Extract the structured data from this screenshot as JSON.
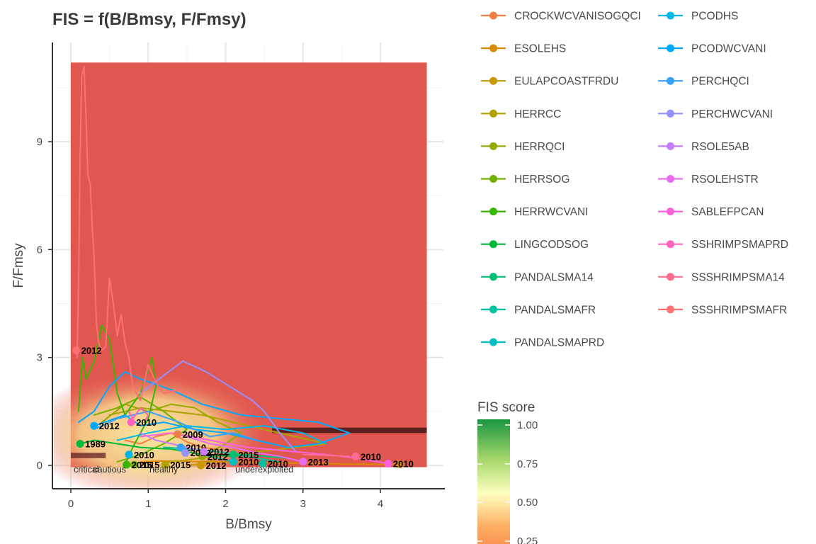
{
  "chart_data": {
    "type": "line",
    "title": "FIS = f(B/Bmsy, F/Fmsy)",
    "xlabel": "B/Bmsy",
    "ylabel": "F/Fmsy",
    "xlim": [
      -0.23,
      4.82
    ],
    "ylim": [
      -0.65,
      11.9
    ],
    "x_ticks": [
      0,
      1,
      2,
      3,
      4
    ],
    "y_ticks": [
      0,
      3,
      6,
      9
    ],
    "grid": true,
    "legend_position": "right",
    "zone_labels": [
      {
        "text": "critical",
        "x": 0.2
      },
      {
        "text": "cautious",
        "x": 0.5
      },
      {
        "text": "healthy",
        "x": 1.2
      },
      {
        "text": "underexploited",
        "x": 2.5
      }
    ],
    "colorbar": {
      "title": "FIS score",
      "ticks": [
        "1.00",
        "0.75",
        "0.50",
        "0.25"
      ]
    },
    "series": [
      {
        "name": "CROCKWCVANISOGQCI",
        "color": "#F07E45",
        "x": [
          1.9,
          1.7,
          1.5,
          1.3,
          1.1,
          0.9,
          0.7
        ],
        "y": [
          0.45,
          0.5,
          0.65,
          0.9,
          0.8,
          0.6,
          0.7
        ],
        "end": {
          "x": 1.38,
          "y": 0.87,
          "label": "2009"
        }
      },
      {
        "name": "ESOLEHS",
        "color": "#DA8A00",
        "x": [
          4.2,
          3.6,
          3.0,
          2.4,
          1.8,
          1.2,
          0.9
        ],
        "y": [
          0.03,
          0.04,
          0.06,
          0.08,
          0.1,
          0.12,
          0.1
        ],
        "end": {
          "x": 4.25,
          "y": 0.03,
          "label": ""
        }
      },
      {
        "name": "EULAPCOASTFRDU",
        "color": "#C69A00",
        "x": [
          1.9,
          1.8,
          1.7,
          1.6,
          1.5
        ],
        "y": [
          0.2,
          0.1,
          0.04,
          0.02,
          0.0
        ],
        "end": {
          "x": 1.68,
          "y": 0.0,
          "label": "2012"
        }
      },
      {
        "name": "HERRCC",
        "color": "#B0A200",
        "x": [
          0.5,
          0.9,
          1.3,
          1.7,
          2.1,
          2.5,
          2.9,
          3.3,
          2.9,
          2.5,
          2.1,
          1.7,
          1.3,
          1.2
        ],
        "y": [
          1.4,
          1.6,
          1.5,
          1.4,
          1.2,
          1.0,
          0.8,
          0.6,
          0.5,
          0.4,
          0.3,
          0.2,
          0.1,
          0.05
        ],
        "end": {
          "x": 1.22,
          "y": 0.02,
          "label": "2015"
        }
      },
      {
        "name": "HERRQCI",
        "color": "#97A900",
        "x": [
          0.4,
          0.7,
          1.0,
          1.3,
          1.6,
          1.9,
          2.2,
          2.0,
          1.7
        ],
        "y": [
          1.2,
          1.7,
          1.5,
          1.7,
          1.6,
          1.2,
          0.9,
          0.6,
          0.25
        ],
        "end": {
          "x": 1.7,
          "y": 0.25,
          "label": "2012"
        }
      },
      {
        "name": "HERRSOG",
        "color": "#72B000",
        "x": [
          0.3,
          0.6,
          0.9,
          1.2,
          1.5,
          1.2,
          0.9,
          0.6
        ],
        "y": [
          1.4,
          1.6,
          1.9,
          1.5,
          1.0,
          0.6,
          0.3,
          0.1
        ],
        "end": {
          "x": 0.82,
          "y": 0.02,
          "label": "2015"
        }
      },
      {
        "name": "HERRWCVANI",
        "color": "#39B600",
        "x": [
          0.1,
          0.15,
          0.2,
          0.3,
          0.4,
          0.5,
          0.6,
          0.7,
          0.9,
          1.05,
          1.1,
          1.0,
          0.8,
          0.7
        ],
        "y": [
          1.5,
          3.0,
          2.4,
          2.9,
          3.9,
          3.5,
          2.0,
          1.4,
          2.0,
          3.0,
          2.2,
          1.3,
          0.5,
          0.02
        ],
        "end": {
          "x": 0.72,
          "y": 0.02,
          "label": "2015"
        }
      },
      {
        "name": "LINGCODSOG",
        "color": "#00BA38",
        "x": [
          0.12,
          0.3,
          0.6,
          0.9,
          1.3,
          1.7,
          2.1,
          2.3
        ],
        "y": [
          0.6,
          0.7,
          0.6,
          0.5,
          0.45,
          0.3,
          0.25,
          0.3
        ],
        "end": {
          "x": 0.12,
          "y": 0.6,
          "label": "1989"
        }
      },
      {
        "name": "PANDALSMA14",
        "color": "#00BF74",
        "x": [
          2.8,
          2.5,
          2.3,
          2.1
        ],
        "y": [
          0.2,
          0.25,
          0.3,
          0.3
        ],
        "end": {
          "x": 2.1,
          "y": 0.3,
          "label": "2015"
        }
      },
      {
        "name": "PANDALSMAFR",
        "color": "#00C19F",
        "x": [
          1.2,
          1.6,
          2.0,
          2.4,
          2.7
        ],
        "y": [
          0.5,
          0.45,
          0.35,
          0.2,
          0.1
        ],
        "end": {
          "x": 2.48,
          "y": 0.05,
          "label": "2010"
        }
      },
      {
        "name": "PANDALSMAPRD",
        "color": "#00BFC4",
        "x": [
          1.7,
          1.9,
          2.1
        ],
        "y": [
          0.3,
          0.2,
          0.1
        ],
        "end": {
          "x": 2.1,
          "y": 0.1,
          "label": "2010"
        }
      },
      {
        "name": "PCODHS",
        "color": "#00B8E7",
        "x": [
          0.6,
          1.0,
          1.5,
          2.0,
          2.5,
          3.0,
          3.3
        ],
        "y": [
          0.7,
          0.9,
          1.1,
          1.0,
          1.1,
          0.9,
          0.6
        ],
        "end": {
          "x": 0.75,
          "y": 0.3,
          "label": "2010"
        }
      },
      {
        "name": "PCODWCVANI",
        "color": "#00A9FF",
        "x": [
          0.1,
          0.3,
          0.5,
          0.7,
          0.9,
          1.3,
          1.7,
          2.2,
          2.7,
          3.2,
          3.6,
          3.2,
          2.8,
          2.4,
          2.0,
          1.6,
          1.2,
          0.9,
          0.7,
          0.3
        ],
        "y": [
          1.2,
          1.5,
          2.2,
          2.6,
          2.4,
          2.1,
          1.7,
          1.4,
          1.3,
          1.2,
          0.9,
          0.6,
          0.5,
          0.7,
          0.9,
          1.0,
          1.2,
          1.1,
          1.4,
          1.1
        ],
        "end": {
          "x": 0.3,
          "y": 1.1,
          "label": "2012"
        }
      },
      {
        "name": "PERCHQCI",
        "color": "#35A2FF",
        "x": [
          0.3,
          0.6,
          1.0,
          1.4,
          1.8,
          2.1,
          2.4
        ],
        "y": [
          1.0,
          1.3,
          1.5,
          1.2,
          0.8,
          0.9,
          0.7
        ],
        "end": {
          "x": 1.42,
          "y": 0.5,
          "label": "2010"
        }
      },
      {
        "name": "PERCHWCVANI",
        "color": "#9590FF",
        "x": [
          0.9,
          1.2,
          1.45,
          1.75,
          2.05,
          2.35,
          2.5,
          2.7,
          2.9
        ],
        "y": [
          2.0,
          2.5,
          2.9,
          2.6,
          2.2,
          1.8,
          1.5,
          0.9,
          0.4
        ],
        "end": {
          "x": 1.48,
          "y": 0.35,
          "label": "2012"
        }
      },
      {
        "name": "RSOLE5AB",
        "color": "#C77CFF",
        "x": [
          0.9,
          1.1,
          1.3,
          1.5,
          1.7
        ],
        "y": [
          0.9,
          0.7,
          0.6,
          0.5,
          0.4
        ],
        "end": {
          "x": 1.72,
          "y": 0.38,
          "label": "2012"
        }
      },
      {
        "name": "RSOLEHSTR",
        "color": "#E76BF3",
        "x": [
          1.5,
          1.8,
          2.1,
          2.4,
          2.7,
          3.0
        ],
        "y": [
          0.8,
          0.6,
          0.5,
          0.35,
          0.25,
          0.1
        ],
        "end": {
          "x": 3.0,
          "y": 0.1,
          "label": "2013"
        }
      },
      {
        "name": "SABLEFPCAN",
        "color": "#FA62DB",
        "x": [
          0.9,
          1.3,
          1.8,
          2.3,
          2.8,
          3.3,
          3.7,
          4.1
        ],
        "y": [
          0.8,
          0.9,
          0.7,
          0.5,
          0.4,
          0.3,
          0.2,
          0.05
        ],
        "end": {
          "x": 4.1,
          "y": 0.05,
          "label": "2010"
        }
      },
      {
        "name": "SSHRIMPSMAPRD",
        "color": "#FF62BC",
        "x": [
          0.75,
          0.8,
          0.9,
          1.0,
          0.95
        ],
        "y": [
          1.5,
          1.3,
          1.6,
          1.4,
          1.2
        ],
        "end": {
          "x": 0.78,
          "y": 1.2,
          "label": "2010"
        }
      },
      {
        "name": "SSSHRIMPSMA14",
        "color": "#FF6C91",
        "x": [
          3.0,
          3.3,
          3.6
        ],
        "y": [
          0.3,
          0.28,
          0.25
        ],
        "end": {
          "x": 3.68,
          "y": 0.25,
          "label": "2010"
        }
      },
      {
        "name": "SSSHRIMPSMAFR",
        "color": "#FF7070",
        "x": [
          0.08,
          0.1,
          0.12,
          0.14,
          0.17,
          0.2,
          0.22,
          0.25,
          0.28,
          0.3,
          0.33,
          0.36,
          0.4,
          0.45,
          0.5,
          0.55,
          0.6,
          0.65,
          0.7,
          0.75,
          0.8,
          0.9,
          1.0,
          1.1,
          1.2,
          1.4,
          1.5
        ],
        "y": [
          3.0,
          5.0,
          8.5,
          10.8,
          11.1,
          9.5,
          8.1,
          7.8,
          6.5,
          5.8,
          4.0,
          3.4,
          3.2,
          3.3,
          5.2,
          4.5,
          3.6,
          4.2,
          3.4,
          3.0,
          2.2,
          1.8,
          2.8,
          2.3,
          2.0,
          2.1,
          2.0
        ],
        "end": {
          "x": 0.07,
          "y": 3.2,
          "label": "2012"
        }
      }
    ]
  }
}
